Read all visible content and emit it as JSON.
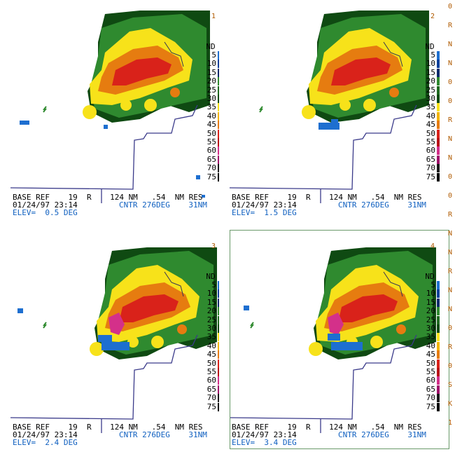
{
  "panels": [
    {
      "number": "1",
      "legend_title": "ND",
      "footer": {
        "line1": "BASE REF    19  R    124 NM   .54  NM RES",
        "line2_date": "01/24/97 23:14",
        "line2_center": "CNTR 276DEG    31NM",
        "line3": "ELEV=  0.5 DEG"
      }
    },
    {
      "number": "2",
      "legend_title": "ND",
      "footer": {
        "line1": "BASE REF    19  R    124 NM   .54  NM RES",
        "line2_date": "01/24/97 23:14",
        "line2_center": "CNTR 276DEG    31NM",
        "line3": "ELEV=  1.5 DEG"
      }
    },
    {
      "number": "3",
      "legend_title": "ND",
      "footer": {
        "line1": "BASE REF    19  R    124 NM   .54  NM RES",
        "line2_date": "01/24/97 23:14",
        "line2_center": "CNTR 276DEG    31NM",
        "line3": "ELEV=  2.4 DEG"
      }
    },
    {
      "number": "4",
      "legend_title": "ND",
      "footer": {
        "line1": "BASE REF    19  R    124 NM   .54  NM RES",
        "line2_date": "01/24/97 23:14",
        "line2_center": "CNTR 276DEG    31NM",
        "line3": "ELEV=  3.4 DEG"
      }
    }
  ],
  "legend": [
    {
      "label": "5",
      "color": "#1d6fd0"
    },
    {
      "label": "10",
      "color": "#0b3f9a"
    },
    {
      "label": "15",
      "color": "#0b2a6b"
    },
    {
      "label": "20",
      "color": "#2f8a2f"
    },
    {
      "label": "25",
      "color": "#1f6a1f"
    },
    {
      "label": "30",
      "color": "#0f4a12"
    },
    {
      "label": "35",
      "color": "#f7e21a"
    },
    {
      "label": "40",
      "color": "#f2b400"
    },
    {
      "label": "45",
      "color": "#e67c10"
    },
    {
      "label": "50",
      "color": "#d9221a"
    },
    {
      "label": "55",
      "color": "#b81418"
    },
    {
      "label": "60",
      "color": "#d4308a"
    },
    {
      "label": "65",
      "color": "#a0106a"
    },
    {
      "label": "70",
      "color": "#1a1a1a"
    },
    {
      "label": "75",
      "color": "#000000"
    }
  ],
  "edge_strip": [
    "0",
    "R",
    "N",
    "N",
    "0",
    "0",
    "R",
    "N",
    "N",
    "0",
    "0",
    "R",
    "N",
    "N",
    "R",
    "N",
    "N",
    "0",
    "R",
    "0",
    "S",
    "K",
    "1"
  ],
  "colors": {
    "county_line": "#3a3a8a",
    "storm_green": "#2f8a2f",
    "storm_dark_green": "#0f4a12",
    "storm_yellow": "#f7e21a",
    "storm_orange": "#e67c10",
    "storm_red": "#d9221a",
    "storm_magenta": "#d4308a",
    "storm_blue": "#1d6fd0"
  }
}
